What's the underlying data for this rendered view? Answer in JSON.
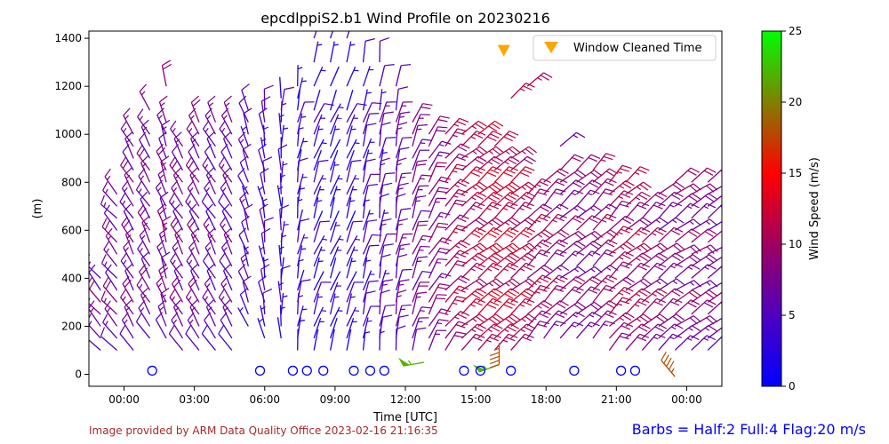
{
  "colors": {
    "barb_low": "#0000ff",
    "barb_mid": "#800080",
    "barb_high": "#ff0000",
    "barb_higher": "#808000",
    "barb_max": "#00ff00",
    "window_marker": "#ffa500",
    "circle_marker": "#0000ff",
    "credit_text": "#a52a2a",
    "barbs_note": "#0000ff"
  },
  "footer": {
    "credit": "Image provided by ARM Data Quality Office 2023-02-16 21:16:35",
    "barbs_note": "Barbs = Half:2 Full:4 Flag:20 m/s"
  },
  "chart_data": {
    "type": "wind_barbs",
    "title": "epcdlppiS2.b1 Wind Profile on 20230216",
    "xlabel": "Time [UTC]",
    "ylabel": "(m)",
    "xlim": [
      -1.5,
      25.5
    ],
    "ylim": [
      -50,
      1430
    ],
    "x_ticks": [
      0,
      3,
      6,
      9,
      12,
      15,
      18,
      21,
      24
    ],
    "x_tick_labels": [
      "00:00",
      "03:00",
      "06:00",
      "09:00",
      "12:00",
      "15:00",
      "18:00",
      "21:00",
      "00:00"
    ],
    "y_ticks": [
      0,
      200,
      400,
      600,
      800,
      1000,
      1200,
      1400
    ],
    "y_tick_labels": [
      "0",
      "200",
      "400",
      "600",
      "800",
      "1000",
      "1200",
      "1400"
    ],
    "legend": {
      "position": "top-right",
      "entries": [
        "Window Cleaned Time"
      ]
    },
    "colorbar": {
      "label": "Wind Speed (m/s)",
      "range": [
        0,
        25
      ],
      "ticks": [
        0,
        5,
        10,
        15,
        20,
        25
      ],
      "tick_labels": [
        "0",
        "5",
        "10",
        "15",
        "20",
        "25"
      ]
    },
    "window_cleaned_times": [
      {
        "x": 16.2,
        "y": 1350
      }
    ],
    "circle_markers_x": [
      1.2,
      5.8,
      7.2,
      7.8,
      8.5,
      9.8,
      10.5,
      11.1,
      14.5,
      15.2,
      16.5,
      19.2,
      21.2,
      21.8
    ],
    "circle_markers_y": 15,
    "barb_columns": [
      {
        "x": -1.0,
        "heights": [
          100,
          150,
          200,
          250,
          300,
          350,
          400
        ],
        "speed": 7,
        "dir": 320
      },
      {
        "x": -0.3,
        "heights": [
          100,
          150,
          200,
          250,
          300,
          350,
          400,
          450,
          500,
          550,
          600,
          650,
          700,
          750
        ],
        "speed": 7,
        "dir": 320
      },
      {
        "x": 0.4,
        "heights": [
          100,
          150,
          200,
          250,
          300,
          350,
          400,
          450,
          500,
          550,
          600,
          650,
          700,
          750,
          800,
          850,
          900,
          950,
          1000
        ],
        "speed": 7,
        "dir": 330
      },
      {
        "x": 1.1,
        "heights": [
          150,
          200,
          250,
          300,
          350,
          400,
          450,
          500,
          550,
          600,
          650,
          700,
          750,
          800,
          850,
          900,
          950,
          1000,
          1100
        ],
        "speed": 7,
        "dir": 330
      },
      {
        "x": 1.8,
        "heights": [
          150,
          200,
          250,
          300,
          350,
          400,
          450,
          500,
          550,
          600,
          650,
          700,
          750,
          800,
          850,
          900,
          950,
          1000,
          1050,
          1200
        ],
        "speed": 7,
        "dir": 340
      },
      {
        "x": 2.5,
        "heights": [
          100,
          150,
          200,
          250,
          300,
          350,
          400,
          450,
          500,
          550,
          600,
          650,
          700,
          750,
          800,
          850,
          900,
          950
        ],
        "speed": 7,
        "dir": 330
      },
      {
        "x": 3.2,
        "heights": [
          100,
          150,
          200,
          250,
          300,
          350,
          400,
          450,
          500,
          550,
          600,
          650,
          700,
          750,
          800,
          850,
          900,
          950,
          1000,
          1050
        ],
        "speed": 7,
        "dir": 330
      },
      {
        "x": 3.9,
        "heights": [
          100,
          150,
          200,
          250,
          300,
          350,
          400,
          450,
          500,
          550,
          600,
          650,
          700,
          750,
          800,
          850,
          900,
          950,
          1000,
          1050
        ],
        "speed": 6,
        "dir": 330
      },
      {
        "x": 4.6,
        "heights": [
          100,
          150,
          200,
          250,
          300,
          350,
          400,
          450,
          500,
          550,
          600,
          650,
          700,
          750,
          800,
          850,
          900,
          950,
          1000,
          1050
        ],
        "speed": 6,
        "dir": 330
      },
      {
        "x": 5.3,
        "heights": [
          200,
          250,
          300,
          350,
          400,
          450,
          500,
          550,
          600,
          650,
          700,
          750,
          800,
          850,
          900,
          950,
          1000,
          1050,
          1100
        ],
        "speed": 5,
        "dir": 340
      },
      {
        "x": 6.0,
        "heights": [
          150,
          200,
          250,
          300,
          350,
          400,
          450,
          500,
          550,
          600,
          650,
          700,
          750,
          800,
          850,
          900,
          950,
          1000,
          1050,
          1100
        ],
        "speed": 4,
        "dir": 350
      },
      {
        "x": 6.7,
        "heights": [
          150,
          200,
          250,
          300,
          350,
          400,
          450,
          500,
          550,
          600,
          650,
          700,
          750,
          800,
          850,
          900,
          950,
          1000,
          1050,
          1100,
          1150
        ],
        "speed": 3,
        "dir": 0
      },
      {
        "x": 7.4,
        "heights": [
          100,
          150,
          200,
          250,
          300,
          350,
          400,
          450,
          500,
          550,
          600,
          650,
          700,
          750,
          800,
          850,
          900,
          950,
          1000,
          1050,
          1100,
          1150,
          1200
        ],
        "speed": 3,
        "dir": 10
      },
      {
        "x": 8.1,
        "heights": [
          100,
          150,
          200,
          250,
          300,
          350,
          400,
          450,
          500,
          550,
          600,
          650,
          700,
          750,
          800,
          850,
          900,
          950,
          1000,
          1050,
          1100,
          1200,
          1300,
          1400
        ],
        "speed": 3,
        "dir": 20
      },
      {
        "x": 8.8,
        "heights": [
          100,
          150,
          200,
          250,
          300,
          350,
          400,
          450,
          500,
          550,
          600,
          650,
          700,
          750,
          800,
          850,
          900,
          950,
          1000,
          1050,
          1100,
          1200,
          1300,
          1400
        ],
        "speed": 2,
        "dir": 20
      },
      {
        "x": 9.5,
        "heights": [
          100,
          150,
          200,
          250,
          300,
          350,
          400,
          450,
          500,
          550,
          600,
          650,
          700,
          750,
          800,
          850,
          900,
          950,
          1000,
          1050,
          1100,
          1200,
          1300,
          1400
        ],
        "speed": 3,
        "dir": 20
      },
      {
        "x": 10.2,
        "heights": [
          100,
          150,
          200,
          250,
          300,
          350,
          400,
          450,
          500,
          550,
          600,
          650,
          700,
          750,
          800,
          850,
          900,
          950,
          1000,
          1050,
          1100,
          1200,
          1300
        ],
        "speed": 4,
        "dir": 15
      },
      {
        "x": 10.9,
        "heights": [
          100,
          150,
          200,
          250,
          300,
          350,
          400,
          450,
          500,
          550,
          600,
          650,
          700,
          750,
          800,
          850,
          900,
          950,
          1000,
          1050,
          1100,
          1200,
          1300
        ],
        "speed": 5,
        "dir": 10
      },
      {
        "x": 11.6,
        "heights": [
          100,
          150,
          200,
          250,
          300,
          350,
          400,
          450,
          500,
          550,
          600,
          650,
          700,
          750,
          800,
          850,
          900,
          950,
          1000,
          1050,
          1100,
          1200
        ],
        "speed": 6,
        "dir": 10
      },
      {
        "x": 12.3,
        "heights": [
          100,
          150,
          200,
          250,
          300,
          350,
          400,
          450,
          500,
          550,
          600,
          650,
          700,
          750,
          800,
          850,
          900,
          950,
          1000,
          1050
        ],
        "speed": 7,
        "dir": 20
      },
      {
        "x": 13.0,
        "heights": [
          100,
          150,
          200,
          250,
          300,
          350,
          400,
          450,
          500,
          550,
          600,
          650,
          700,
          750,
          800,
          850,
          900,
          950,
          1000
        ],
        "speed": 8,
        "dir": 30
      },
      {
        "x": 13.7,
        "heights": [
          100,
          150,
          200,
          250,
          300,
          350,
          400,
          450,
          500,
          550,
          600,
          650,
          700,
          750,
          800,
          850,
          900,
          950,
          1000
        ],
        "speed": 10,
        "dir": 40
      },
      {
        "x": 14.4,
        "heights": [
          100,
          150,
          200,
          250,
          300,
          350,
          400,
          450,
          500,
          550,
          600,
          650,
          700,
          750,
          800,
          850,
          900,
          950,
          1000
        ],
        "speed": 11,
        "dir": 50
      },
      {
        "x": 15.1,
        "heights": [
          100,
          150,
          200,
          250,
          300,
          350,
          400,
          450,
          500,
          550,
          600,
          650,
          700,
          750,
          800,
          850,
          900,
          950,
          1000
        ],
        "speed": 12,
        "dir": 50
      },
      {
        "x": 15.8,
        "heights": [
          100,
          150,
          200,
          250,
          300,
          350,
          400,
          450,
          500,
          550,
          600,
          650,
          700,
          750,
          800,
          850,
          900,
          950
        ],
        "speed": 12,
        "dir": 50
      },
      {
        "x": 16.5,
        "heights": [
          100,
          150,
          200,
          250,
          300,
          350,
          400,
          450,
          500,
          550,
          600,
          650,
          700,
          750,
          800,
          850,
          900,
          1150
        ],
        "speed": 11,
        "dir": 50
      },
      {
        "x": 17.2,
        "heights": [
          150,
          200,
          250,
          300,
          350,
          400,
          450,
          500,
          550,
          600,
          650,
          700,
          750,
          1200
        ],
        "speed": 10,
        "dir": 45
      },
      {
        "x": 17.9,
        "heights": [
          150,
          200,
          250,
          300,
          350,
          400,
          450,
          500,
          550,
          600,
          650,
          700,
          750,
          800
        ],
        "speed": 9,
        "dir": 45
      },
      {
        "x": 18.6,
        "heights": [
          150,
          200,
          250,
          300,
          350,
          400,
          450,
          500,
          550,
          600,
          650,
          700,
          750,
          800,
          850,
          950
        ],
        "speed": 8,
        "dir": 50
      },
      {
        "x": 19.3,
        "heights": [
          150,
          200,
          250,
          300,
          350,
          400,
          450,
          500,
          550,
          600,
          650,
          700,
          750,
          800,
          850
        ],
        "speed": 8,
        "dir": 50
      },
      {
        "x": 20.0,
        "heights": [
          150,
          200,
          250,
          300,
          350,
          400,
          450,
          500,
          550,
          600,
          650,
          700,
          750,
          800,
          850
        ],
        "speed": 9,
        "dir": 45
      },
      {
        "x": 20.7,
        "heights": [
          100,
          150,
          200,
          250,
          300,
          350,
          400,
          450,
          500,
          550,
          600,
          650,
          700,
          750,
          800
        ],
        "speed": 10,
        "dir": 45
      },
      {
        "x": 21.4,
        "heights": [
          100,
          150,
          200,
          250,
          300,
          350,
          400,
          450,
          500,
          550,
          600,
          650,
          700,
          750,
          800
        ],
        "speed": 10,
        "dir": 50
      },
      {
        "x": 22.1,
        "heights": [
          100,
          150,
          200,
          250,
          300,
          350,
          400,
          450,
          500,
          550,
          600,
          650,
          700
        ],
        "speed": 9,
        "dir": 50
      },
      {
        "x": 22.8,
        "heights": [
          100,
          150,
          200,
          250,
          300,
          350,
          400,
          450,
          500,
          550,
          600,
          650,
          700,
          750
        ],
        "speed": 8,
        "dir": 50
      },
      {
        "x": 23.5,
        "heights": [
          100,
          150,
          200,
          250,
          300,
          350,
          400,
          450,
          500,
          550,
          600,
          650,
          700,
          750,
          800
        ],
        "speed": 8,
        "dir": 55
      },
      {
        "x": 24.2,
        "heights": [
          100,
          150,
          200,
          250,
          300,
          350,
          400,
          450,
          500,
          550,
          600,
          650,
          700,
          750,
          800
        ],
        "speed": 8,
        "dir": 55
      },
      {
        "x": 24.9,
        "heights": [
          100,
          150,
          200,
          250,
          300,
          350,
          400,
          450,
          500,
          550,
          600,
          650,
          700,
          750,
          800
        ],
        "speed": 7,
        "dir": 55
      }
    ],
    "special_barbs": [
      {
        "x": 12.8,
        "y": 50,
        "speed": 22,
        "dir": 260
      },
      {
        "x": 16.0,
        "y": 40,
        "speed": 22,
        "dir": 250
      },
      {
        "x": 16.0,
        "y": 130,
        "speed": 18,
        "dir": 180
      },
      {
        "x": 23.5,
        "y": -10,
        "speed": 18,
        "dir": 320
      }
    ]
  }
}
